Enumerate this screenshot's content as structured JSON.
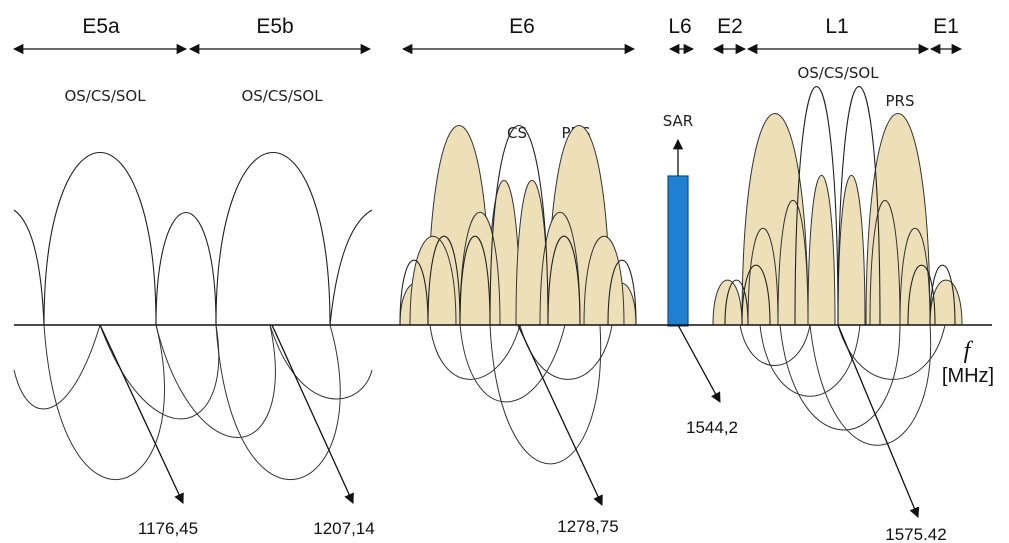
{
  "colors": {
    "spectrum_fill": "#ede0b8",
    "sar_bar": "#1f7fd0",
    "line": "#111111"
  },
  "bands": [
    {
      "id": "e5a",
      "label": "E5a"
    },
    {
      "id": "e5b",
      "label": "E5b"
    },
    {
      "id": "e6",
      "label": "E6"
    },
    {
      "id": "l6",
      "label": "L6"
    },
    {
      "id": "e2",
      "label": "E2"
    },
    {
      "id": "l1",
      "label": "L1"
    },
    {
      "id": "e1",
      "label": "E1"
    }
  ],
  "signal_labels": {
    "e5a_services": "OS/CS/SOL",
    "e5b_services": "OS/CS/SOL",
    "e6_cs": "CS",
    "e6_prs": "PRS",
    "sar": "SAR",
    "l1_services": "OS/CS/SOL",
    "l1_prs": "PRS"
  },
  "frequencies": {
    "e5a": "1176,45",
    "e5b": "1207,14",
    "e6": "1278,75",
    "sar": "1544,2",
    "l1": "1575.42"
  },
  "axis": {
    "variable": "f",
    "unit": "[MHz]"
  }
}
